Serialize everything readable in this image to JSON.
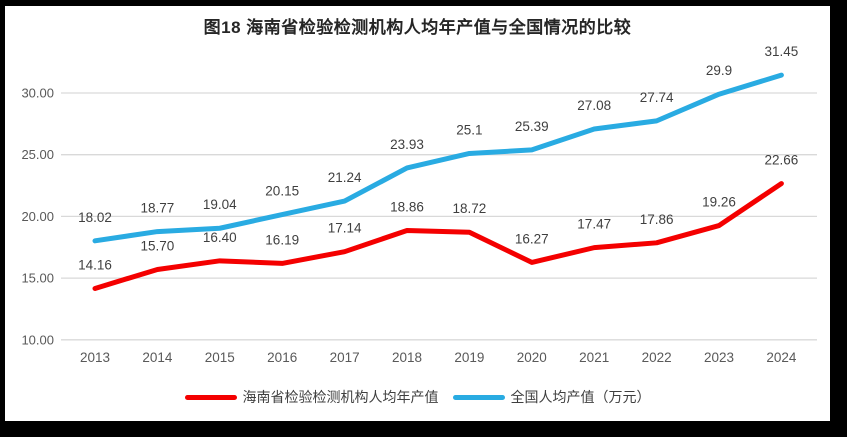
{
  "frame": {
    "background": "#000000",
    "panel_background": "#ffffff"
  },
  "chart_data": {
    "type": "line",
    "title": "图18  海南省检验检测机构人均年产值与全国情况的比较",
    "categories": [
      "2013",
      "2014",
      "2015",
      "2016",
      "2017",
      "2018",
      "2019",
      "2020",
      "2021",
      "2022",
      "2023",
      "2024"
    ],
    "series": [
      {
        "name": "海南省检验检测机构人均年产值",
        "color": "#f40000",
        "values": [
          14.16,
          15.7,
          16.4,
          16.19,
          17.14,
          18.86,
          18.72,
          16.27,
          17.47,
          17.86,
          19.26,
          22.66
        ],
        "labels": [
          "14.16",
          "15.70",
          "16.40",
          "16.19",
          "17.14",
          "18.86",
          "18.72",
          "16.27",
          "17.47",
          "17.86",
          "19.26",
          "22.66"
        ]
      },
      {
        "name": "全国人均产值（万元）",
        "color": "#29abe2",
        "values": [
          18.02,
          18.77,
          19.04,
          20.15,
          21.24,
          23.93,
          25.1,
          25.39,
          27.08,
          27.74,
          29.9,
          31.45
        ],
        "labels": [
          "18.02",
          "18.77",
          "19.04",
          "20.15",
          "21.24",
          "23.93",
          "25.1",
          "25.39",
          "27.08",
          "27.74",
          "29.9",
          "31.45"
        ]
      }
    ],
    "y_axis": {
      "ticks": [
        "10.00",
        "15.00",
        "20.00",
        "25.00",
        "30.00"
      ],
      "min_shown": 10,
      "max_shown": 30,
      "tick_step": 5
    },
    "grid": "horizontal",
    "legend_position": "bottom",
    "colors": {
      "grid": "#d9d9d9",
      "axis_text": "#595959",
      "data_label": "#3f3f3f",
      "title_text": "#262626"
    }
  }
}
